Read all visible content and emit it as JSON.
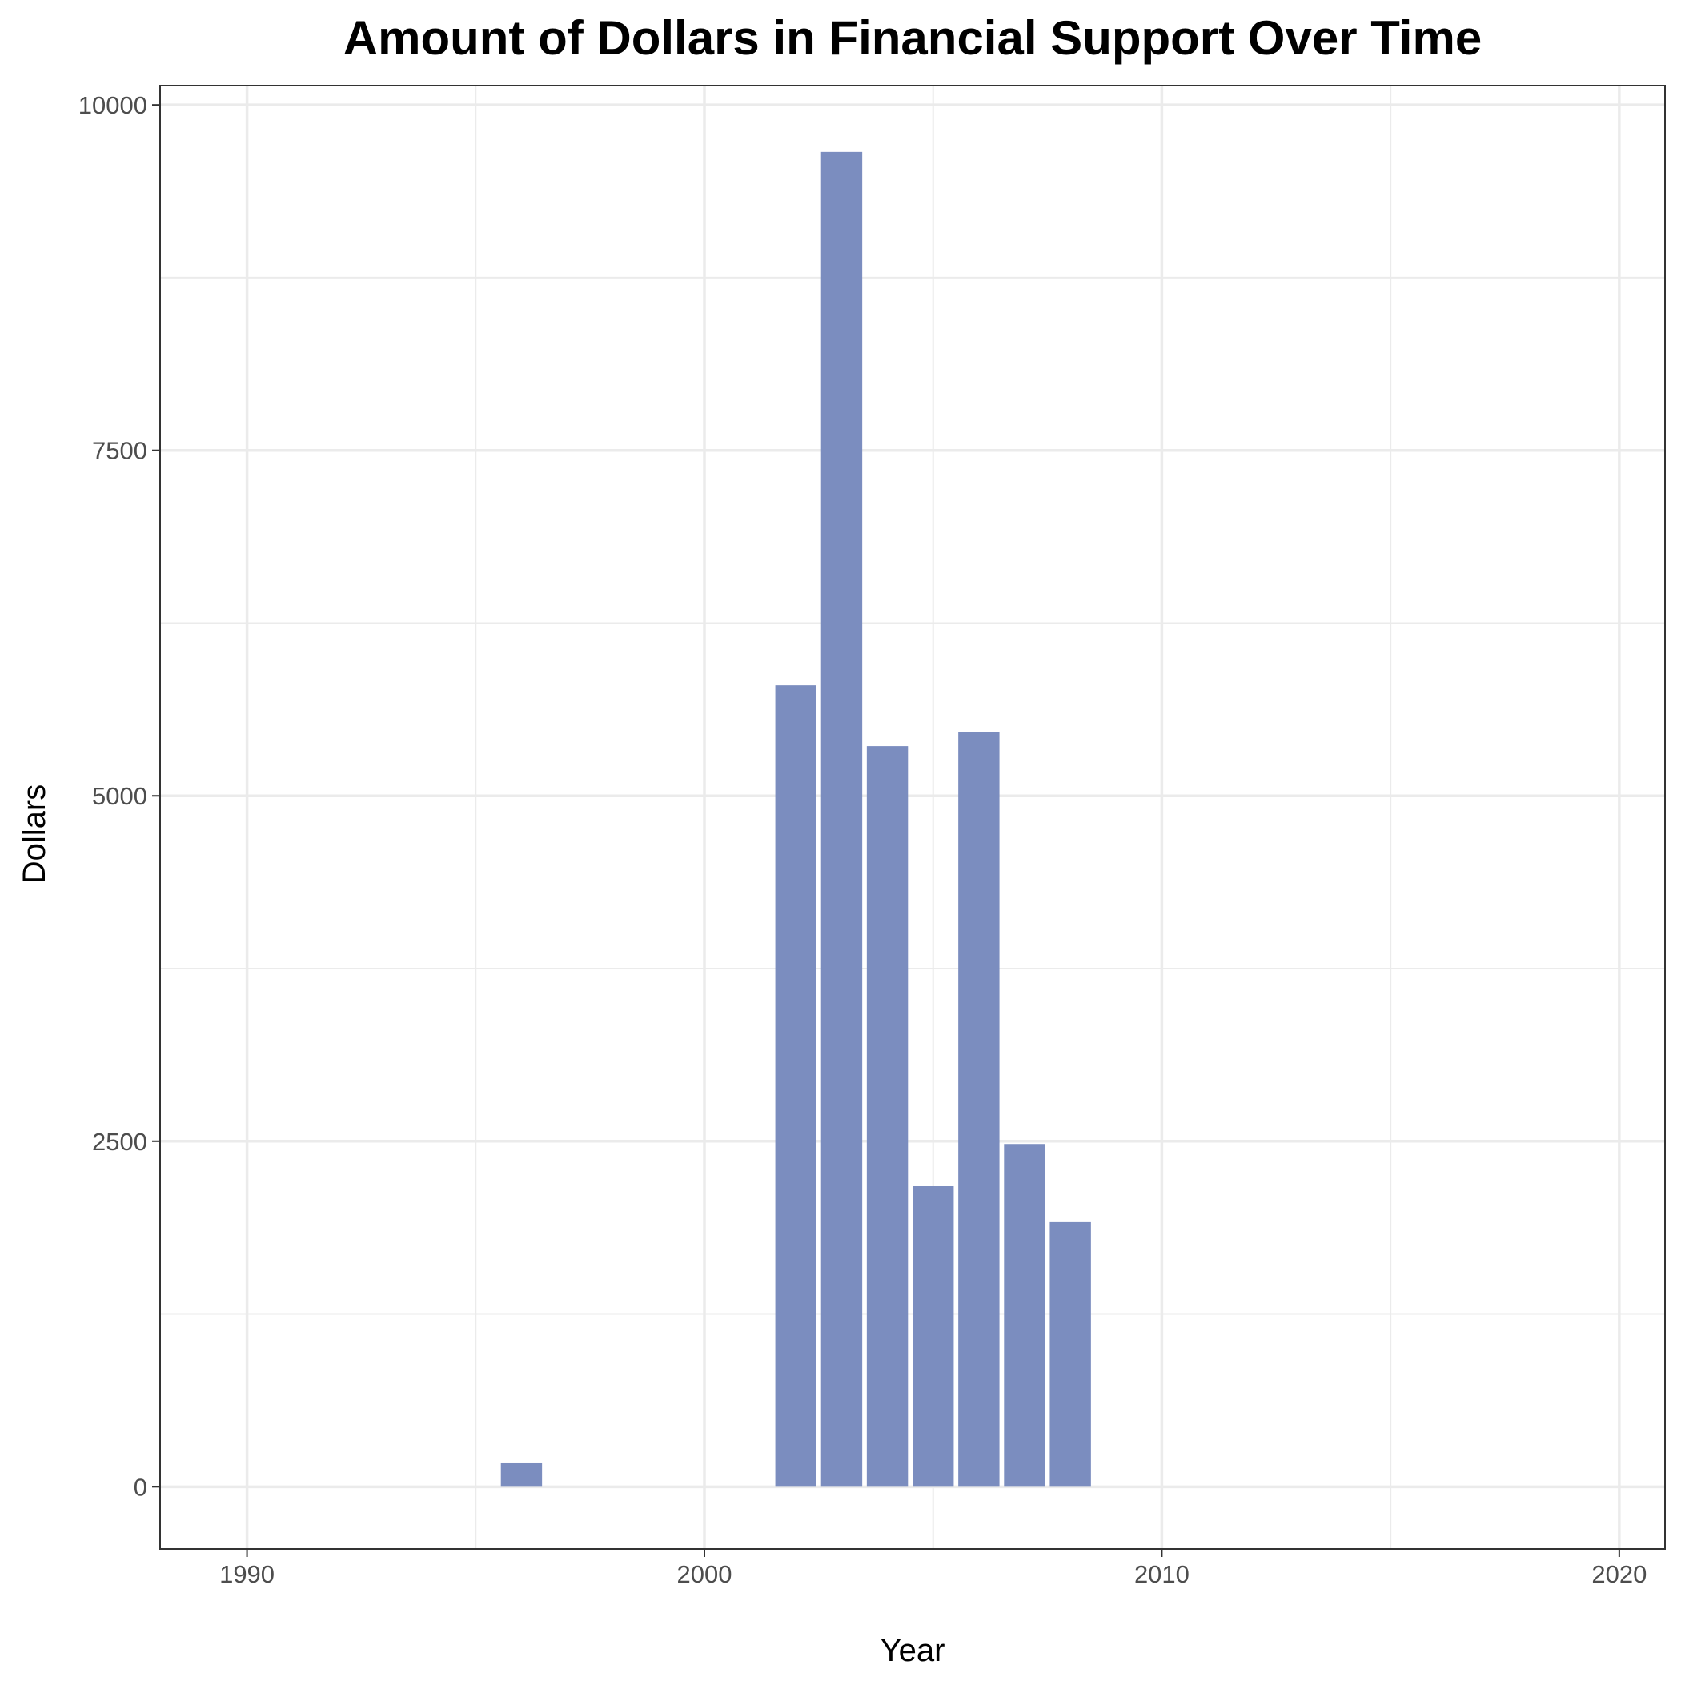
{
  "chart_data": {
    "type": "bar",
    "title": "Amount of Dollars in Financial Support Over Time",
    "xlabel": "Year",
    "ylabel": "Dollars",
    "x": [
      1996,
      2002,
      2003,
      2004,
      2005,
      2006,
      2007,
      2008
    ],
    "values": [
      170,
      5800,
      9660,
      5360,
      2180,
      5460,
      2480,
      1920
    ],
    "xlim": [
      1988.1,
      2021.0
    ],
    "ylim": [
      -450,
      10140
    ],
    "x_ticks": [
      1990,
      2000,
      2010,
      2020
    ],
    "x_tick_labels": [
      "1990",
      "2000",
      "2010",
      "2020"
    ],
    "y_ticks": [
      0,
      2500,
      5000,
      7500,
      10000
    ],
    "y_tick_labels": [
      "0",
      "2500",
      "5000",
      "7500",
      "10000"
    ],
    "grid": true,
    "bar_color": "#7b8dbf",
    "grid_color": "#ebebeb",
    "panel_border_color": "#333333"
  }
}
